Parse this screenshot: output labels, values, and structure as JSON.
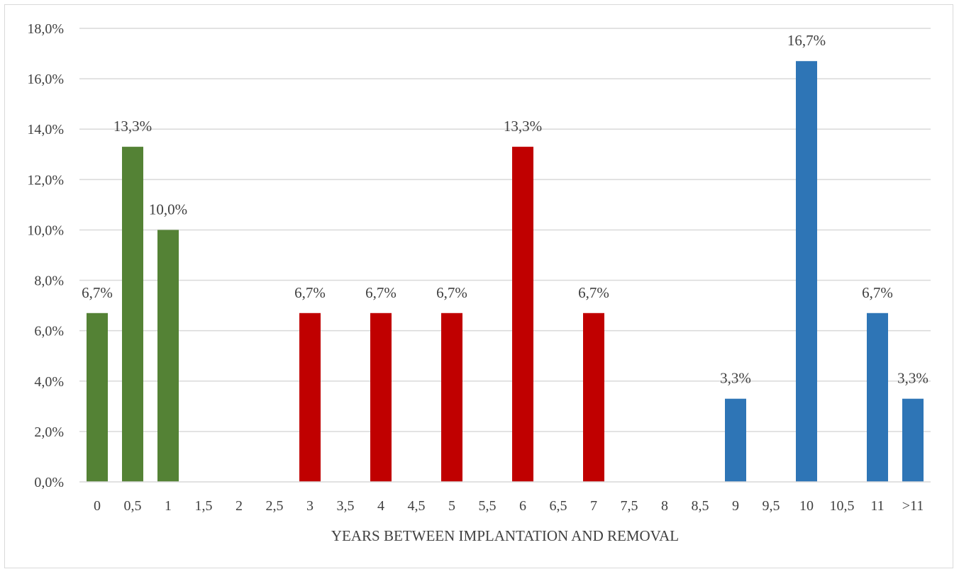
{
  "chart_data": {
    "type": "bar",
    "xlabel": "YEARS BETWEEN IMPLANTATION AND REMOVAL",
    "ylabel": "",
    "ylim": [
      0,
      18
    ],
    "y_ticks": [
      "0,0%",
      "2,0%",
      "4,0%",
      "6,0%",
      "8,0%",
      "10,0%",
      "12,0%",
      "14,0%",
      "16,0%",
      "18,0%"
    ],
    "grid": true,
    "categories": [
      "0",
      "0,5",
      "1",
      "1,5",
      "2",
      "2,5",
      "3",
      "3,5",
      "4",
      "4,5",
      "5",
      "5,5",
      "6",
      "6,5",
      "7",
      "7,5",
      "8",
      "8,5",
      "9",
      "9,5",
      "10",
      "10,5",
      "11",
      ">11"
    ],
    "values": [
      6.7,
      13.3,
      10.0,
      0,
      0,
      0,
      6.7,
      0,
      6.7,
      0,
      6.7,
      0,
      13.3,
      0,
      6.7,
      0,
      0,
      0,
      3.3,
      0,
      16.7,
      0,
      6.7,
      3.3
    ],
    "data_labels": [
      "6,7%",
      "13,3%",
      "10,0%",
      "",
      "",
      "",
      "6,7%",
      "",
      "6,7%",
      "",
      "6,7%",
      "",
      "13,3%",
      "",
      "6,7%",
      "",
      "",
      "",
      "3,3%",
      "",
      "16,7%",
      "",
      "6,7%",
      "3,3%"
    ],
    "bar_colors": [
      "#548235",
      "#548235",
      "#548235",
      "#548235",
      "#548235",
      "#c00000",
      "#c00000",
      "#c00000",
      "#c00000",
      "#c00000",
      "#c00000",
      "#c00000",
      "#c00000",
      "#c00000",
      "#c00000",
      "#c00000",
      "#2e75b6",
      "#2e75b6",
      "#2e75b6",
      "#2e75b6",
      "#2e75b6",
      "#2e75b6",
      "#2e75b6",
      "#2e75b6"
    ],
    "gridline_color": "#d9d9d9"
  }
}
